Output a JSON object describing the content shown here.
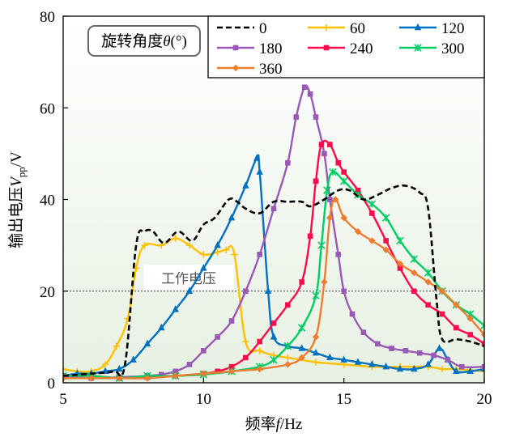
{
  "chart_data": {
    "type": "line",
    "xlabel_prefix": "频率",
    "xlabel_var": "f",
    "xlabel_unit": "/Hz",
    "ylabel_prefix": "输出电压",
    "ylabel_var": "V",
    "ylabel_sub": "pp",
    "ylabel_unit": "/V",
    "xlim": [
      5,
      20
    ],
    "ylim": [
      0,
      80
    ],
    "xticks": [
      "5",
      "10",
      "15",
      "20"
    ],
    "yticks": [
      "0",
      "20",
      "40",
      "60",
      "80"
    ],
    "grid": false,
    "legend_title_prefix": "旋转角度",
    "legend_title_var": "θ",
    "legend_title_unit": "(°)",
    "legend_position": "top-right",
    "reference_line": {
      "y": 20,
      "label": "工作电压"
    },
    "series": [
      {
        "name": "0",
        "color": "#000000",
        "dash": "dashed",
        "marker": "none",
        "points": [
          [
            5,
            1.5
          ],
          [
            6,
            2
          ],
          [
            6.8,
            2.5
          ],
          [
            7.2,
            4
          ],
          [
            7.6,
            30
          ],
          [
            7.9,
            33
          ],
          [
            8.2,
            33
          ],
          [
            8.6,
            30.5
          ],
          [
            9.1,
            33
          ],
          [
            9.6,
            31
          ],
          [
            10,
            34.5
          ],
          [
            10.4,
            36
          ],
          [
            10.9,
            40
          ],
          [
            11.2,
            39.5
          ],
          [
            11.5,
            38
          ],
          [
            12,
            37
          ],
          [
            12.5,
            39.5
          ],
          [
            13,
            39.5
          ],
          [
            13.5,
            39.5
          ],
          [
            13.8,
            38.5
          ],
          [
            14.3,
            40
          ],
          [
            14.8,
            42
          ],
          [
            15.2,
            42
          ],
          [
            15.7,
            40
          ],
          [
            16.2,
            41
          ],
          [
            16.7,
            42.5
          ],
          [
            17.2,
            43
          ],
          [
            17.7,
            41.5
          ],
          [
            18,
            38
          ],
          [
            18.3,
            18
          ],
          [
            18.5,
            9.5
          ],
          [
            19,
            9.5
          ],
          [
            19.5,
            9
          ],
          [
            20,
            8
          ]
        ]
      },
      {
        "name": "60",
        "color": "#FFC000",
        "dash": "solid",
        "marker": "plus",
        "points": [
          [
            5,
            3
          ],
          [
            5.5,
            2.5
          ],
          [
            6,
            2.5
          ],
          [
            6.5,
            4
          ],
          [
            6.9,
            8
          ],
          [
            7.3,
            14
          ],
          [
            7.6,
            25
          ],
          [
            7.9,
            30
          ],
          [
            8.5,
            30
          ],
          [
            9,
            31.5
          ],
          [
            9.5,
            30
          ],
          [
            10,
            28
          ],
          [
            10.5,
            28.5
          ],
          [
            10.8,
            29
          ],
          [
            11.1,
            28
          ],
          [
            11.5,
            9
          ],
          [
            12,
            7
          ],
          [
            12.5,
            6
          ],
          [
            13,
            5.5
          ],
          [
            14,
            4.5
          ],
          [
            15,
            4
          ],
          [
            16,
            3.5
          ],
          [
            17,
            3.5
          ],
          [
            18,
            3.5
          ],
          [
            18.5,
            3
          ],
          [
            19,
            3
          ],
          [
            20,
            2.5
          ]
        ]
      },
      {
        "name": "120",
        "color": "#0070C0",
        "dash": "solid",
        "marker": "triangle",
        "points": [
          [
            5,
            1.5
          ],
          [
            5.5,
            2
          ],
          [
            6,
            2
          ],
          [
            6.5,
            2.5
          ],
          [
            7,
            3
          ],
          [
            7.5,
            5
          ],
          [
            8,
            8.5
          ],
          [
            8.5,
            12
          ],
          [
            9,
            16
          ],
          [
            9.5,
            20
          ],
          [
            10,
            25
          ],
          [
            10.5,
            30
          ],
          [
            11,
            36
          ],
          [
            11.5,
            43
          ],
          [
            11.9,
            49
          ],
          [
            12,
            46
          ],
          [
            12.3,
            20
          ],
          [
            12.5,
            10
          ],
          [
            13,
            8
          ],
          [
            13.5,
            7.5
          ],
          [
            14,
            6.5
          ],
          [
            14.5,
            5.5
          ],
          [
            15,
            5
          ],
          [
            15.5,
            4.5
          ],
          [
            16,
            4
          ],
          [
            16.5,
            3.5
          ],
          [
            17,
            3
          ],
          [
            17.5,
            3
          ],
          [
            18,
            4
          ],
          [
            18.4,
            7.5
          ],
          [
            18.7,
            5
          ],
          [
            19,
            2.5
          ],
          [
            19.5,
            2.5
          ],
          [
            20,
            3
          ]
        ]
      },
      {
        "name": "180",
        "color": "#9B59B6",
        "dash": "solid",
        "marker": "square",
        "points": [
          [
            5,
            1.5
          ],
          [
            6,
            1
          ],
          [
            7,
            1.2
          ],
          [
            8,
            1.5
          ],
          [
            8.5,
            1.8
          ],
          [
            9,
            2.5
          ],
          [
            9.5,
            4
          ],
          [
            10,
            7
          ],
          [
            10.5,
            10
          ],
          [
            11,
            13.5
          ],
          [
            11.5,
            20
          ],
          [
            12,
            28
          ],
          [
            12.5,
            38
          ],
          [
            13,
            48
          ],
          [
            13.3,
            58
          ],
          [
            13.6,
            64.5
          ],
          [
            13.8,
            63
          ],
          [
            14,
            58
          ],
          [
            14.3,
            50
          ],
          [
            14.5,
            40
          ],
          [
            14.8,
            28
          ],
          [
            15,
            20
          ],
          [
            15.3,
            15
          ],
          [
            15.7,
            11
          ],
          [
            16.2,
            8.5
          ],
          [
            16.7,
            7.5
          ],
          [
            17.2,
            7
          ],
          [
            17.7,
            6.5
          ],
          [
            18.2,
            6
          ],
          [
            18.7,
            5
          ],
          [
            19.2,
            3.5
          ],
          [
            20,
            3.5
          ]
        ]
      },
      {
        "name": "240",
        "color": "#FF0A4A",
        "dash": "solid",
        "marker": "square",
        "points": [
          [
            5,
            1.5
          ],
          [
            6,
            1.5
          ],
          [
            7,
            1
          ],
          [
            8,
            1.2
          ],
          [
            9,
            1.5
          ],
          [
            10,
            2
          ],
          [
            10.5,
            2.5
          ],
          [
            11,
            3.5
          ],
          [
            11.5,
            5.5
          ],
          [
            12,
            9
          ],
          [
            12.5,
            13
          ],
          [
            13,
            17
          ],
          [
            13.5,
            22
          ],
          [
            13.8,
            32
          ],
          [
            14,
            44
          ],
          [
            14.2,
            52
          ],
          [
            14.5,
            52
          ],
          [
            14.8,
            48
          ],
          [
            15,
            46
          ],
          [
            15.5,
            42
          ],
          [
            16,
            37
          ],
          [
            16.5,
            31
          ],
          [
            17,
            25
          ],
          [
            17.5,
            20
          ],
          [
            18,
            17
          ],
          [
            18.5,
            15
          ],
          [
            19,
            12
          ],
          [
            19.5,
            10.5
          ],
          [
            20,
            8.5
          ]
        ]
      },
      {
        "name": "300",
        "color": "#00CC66",
        "dash": "solid",
        "marker": "star",
        "points": [
          [
            5,
            1.5
          ],
          [
            6,
            1.5
          ],
          [
            7,
            1
          ],
          [
            8,
            1.5
          ],
          [
            9,
            1.5
          ],
          [
            10,
            1.8
          ],
          [
            11,
            2.5
          ],
          [
            12,
            3.5
          ],
          [
            12.5,
            5
          ],
          [
            13,
            8
          ],
          [
            13.5,
            12
          ],
          [
            14,
            19
          ],
          [
            14.2,
            30
          ],
          [
            14.4,
            42
          ],
          [
            14.6,
            46
          ],
          [
            15,
            44
          ],
          [
            15.5,
            41
          ],
          [
            16,
            39
          ],
          [
            16.5,
            36
          ],
          [
            17,
            31
          ],
          [
            17.5,
            27
          ],
          [
            18,
            24
          ],
          [
            18.5,
            20
          ],
          [
            19,
            17
          ],
          [
            19.5,
            15
          ],
          [
            20,
            12.5
          ]
        ]
      },
      {
        "name": "360",
        "color": "#ED7D31",
        "dash": "solid",
        "marker": "diamond",
        "points": [
          [
            5,
            1
          ],
          [
            6,
            1
          ],
          [
            7,
            1
          ],
          [
            8,
            1
          ],
          [
            9,
            1.5
          ],
          [
            10,
            2
          ],
          [
            11,
            2.5
          ],
          [
            12,
            3
          ],
          [
            13,
            4
          ],
          [
            13.5,
            5.5
          ],
          [
            14,
            10
          ],
          [
            14.3,
            22
          ],
          [
            14.5,
            36
          ],
          [
            14.7,
            40
          ],
          [
            15,
            36
          ],
          [
            15.5,
            33
          ],
          [
            16,
            31
          ],
          [
            16.5,
            29
          ],
          [
            17,
            26
          ],
          [
            17.5,
            24
          ],
          [
            18,
            22
          ],
          [
            18.5,
            20
          ],
          [
            19,
            17
          ],
          [
            19.5,
            14
          ],
          [
            20,
            10.5
          ]
        ]
      }
    ]
  }
}
